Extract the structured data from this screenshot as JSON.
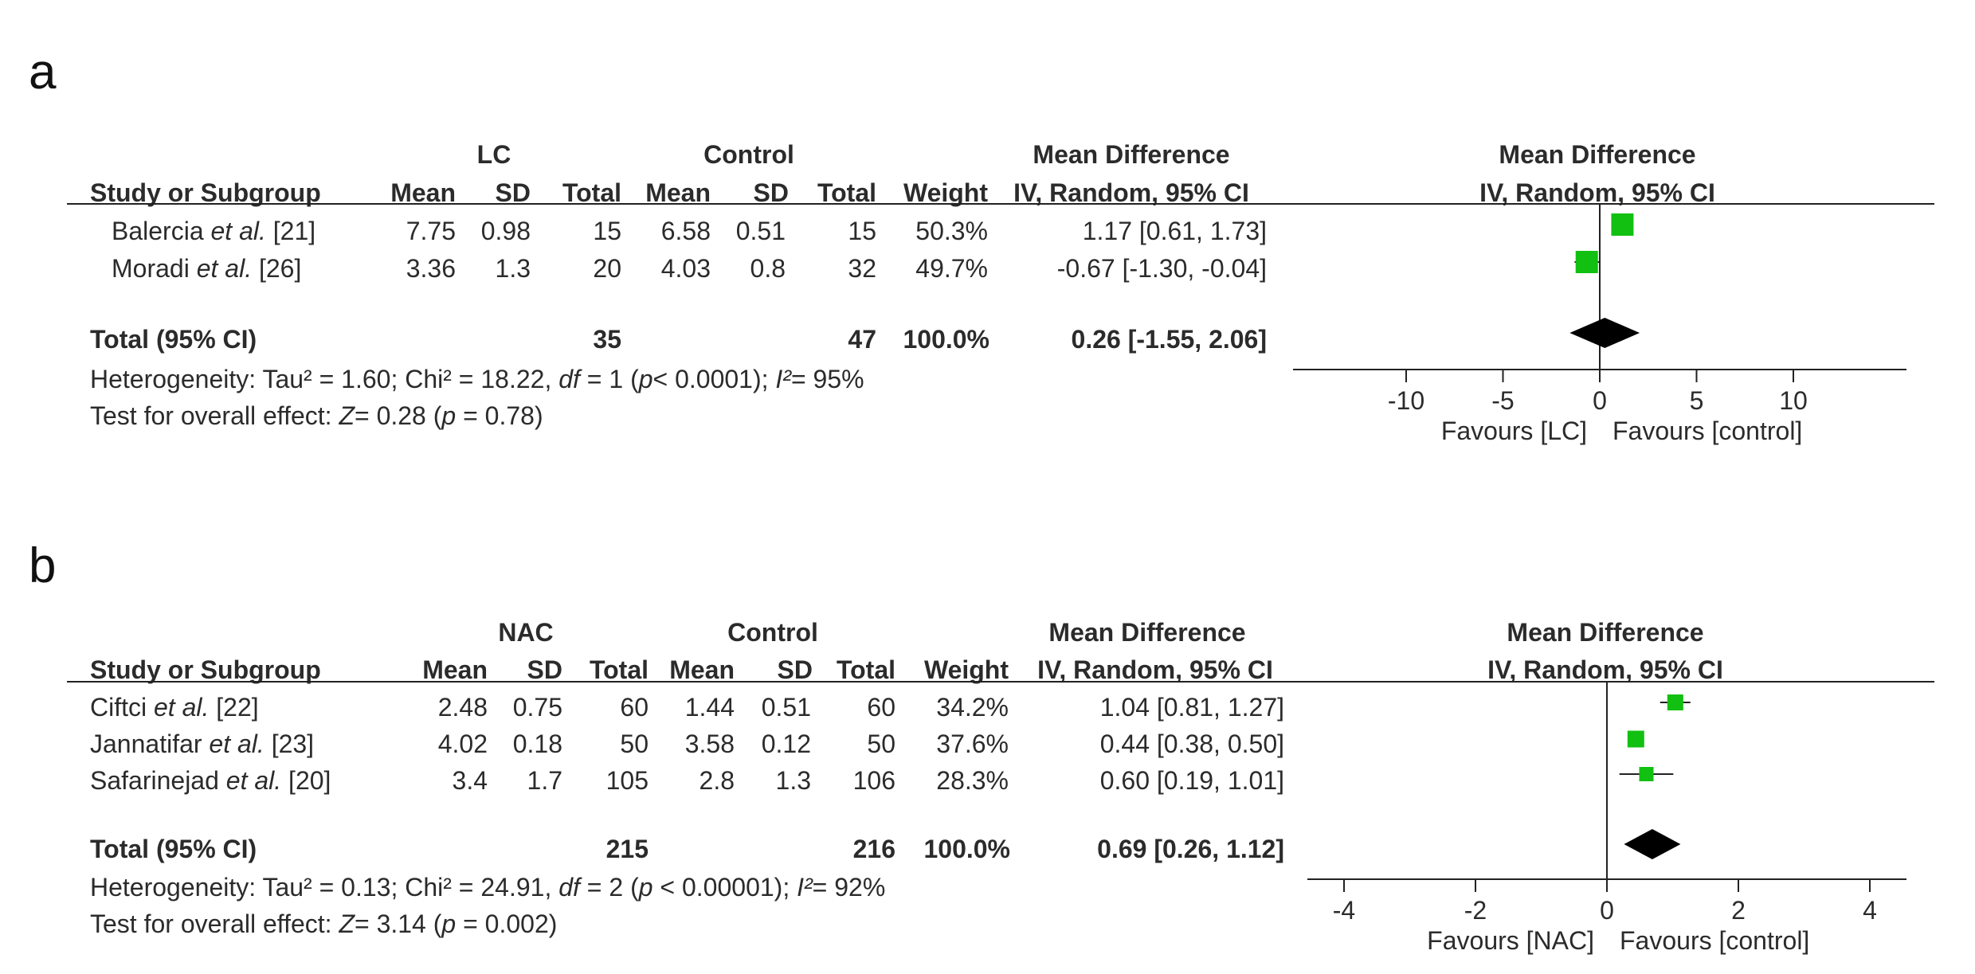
{
  "chart_data": [
    {
      "type": "forest",
      "panel_label": "a",
      "group_labels": {
        "experimental": "LC",
        "control": "Control"
      },
      "headers": {
        "study": "Study or Subgroup",
        "mean": "Mean",
        "sd": "SD",
        "total": "Total",
        "weight": "Weight",
        "md_title": "Mean Difference",
        "md_method": "IV, Random, 95% CI"
      },
      "studies": [
        {
          "author": "Balercia",
          "etal": "et al.",
          "ref": "[21]",
          "exp_mean": "7.75",
          "exp_sd": "0.98",
          "exp_total": "15",
          "ctl_mean": "6.58",
          "ctl_sd": "0.51",
          "ctl_total": "15",
          "weight": "50.3%",
          "ci_text": "1.17 [0.61, 1.73]",
          "md": 1.17,
          "lo": 0.61,
          "hi": 1.73
        },
        {
          "author": "Moradi",
          "etal": "et al.",
          "ref": "[26]",
          "exp_mean": "3.36",
          "exp_sd": "1.3",
          "exp_total": "20",
          "ctl_mean": "4.03",
          "ctl_sd": "0.8",
          "ctl_total": "32",
          "weight": "49.7%",
          "ci_text": "-0.67 [-1.30, -0.04]",
          "md": -0.67,
          "lo": -1.3,
          "hi": -0.04
        }
      ],
      "total": {
        "label": "Total (95% CI)",
        "exp_total": "35",
        "ctl_total": "47",
        "weight": "100.0%",
        "ci_text": "0.26 [-1.55, 2.06]",
        "md": 0.26,
        "lo": -1.55,
        "hi": 2.06
      },
      "heterogeneity": {
        "prefix": "Heterogeneity: Tau² = 1.60; Chi² = 18.22, ",
        "df_label": "df",
        "df_rest": " = 1 (",
        "p_label": "p",
        "p_rest": "< 0.0001); ",
        "i2_label": "I²",
        "i2_rest": "= 95%"
      },
      "overall": {
        "prefix": "Test for overall effect:  ",
        "z_label": "Z",
        "z_rest": "= 0.28 (",
        "p_label": "p",
        "p_rest": " = 0.78)"
      },
      "axis": {
        "ticks": [
          -10,
          -5,
          0,
          5,
          10
        ],
        "tick_labels": [
          "-10",
          "-5",
          "0",
          "5",
          "10"
        ],
        "xlim": [
          -10,
          10
        ]
      },
      "favours_left": "Favours [LC]",
      "favours_right": "Favours [control]",
      "colors": {
        "marker": "#11c011",
        "diamond": "#000000"
      }
    },
    {
      "type": "forest",
      "panel_label": "b",
      "group_labels": {
        "experimental": "NAC",
        "control": "Control"
      },
      "headers": {
        "study": "Study or Subgroup",
        "mean": "Mean",
        "sd": "SD",
        "total": "Total",
        "weight": "Weight",
        "md_title": "Mean Difference",
        "md_method": "IV, Random, 95% CI"
      },
      "studies": [
        {
          "author": "Ciftci",
          "etal": "et al.",
          "ref": "[22]",
          "exp_mean": "2.48",
          "exp_sd": "0.75",
          "exp_total": "60",
          "ctl_mean": "1.44",
          "ctl_sd": "0.51",
          "ctl_total": "60",
          "weight": "34.2%",
          "ci_text": "1.04 [0.81, 1.27]",
          "md": 1.04,
          "lo": 0.81,
          "hi": 1.27
        },
        {
          "author": "Jannatifar",
          "etal": "et al.",
          "ref": "[23]",
          "exp_mean": "4.02",
          "exp_sd": "0.18",
          "exp_total": "50",
          "ctl_mean": "3.58",
          "ctl_sd": "0.12",
          "ctl_total": "50",
          "weight": "37.6%",
          "ci_text": "0.44 [0.38, 0.50]",
          "md": 0.44,
          "lo": 0.38,
          "hi": 0.5
        },
        {
          "author": "Safarinejad",
          "etal": "et al.",
          "ref": "[20]",
          "exp_mean": "3.4",
          "exp_sd": "1.7",
          "exp_total": "105",
          "ctl_mean": "2.8",
          "ctl_sd": "1.3",
          "ctl_total": "106",
          "weight": "28.3%",
          "ci_text": "0.60 [0.19, 1.01]",
          "md": 0.6,
          "lo": 0.19,
          "hi": 1.01
        }
      ],
      "total": {
        "label": "Total (95% CI)",
        "exp_total": "215",
        "ctl_total": "216",
        "weight": "100.0%",
        "ci_text": "0.69 [0.26, 1.12]",
        "md": 0.69,
        "lo": 0.26,
        "hi": 1.12
      },
      "heterogeneity": {
        "prefix": "Heterogeneity: Tau² = 0.13; Chi² = 24.91, ",
        "df_label": "df",
        "df_rest": " = 2 (",
        "p_label": "p",
        "p_rest": " < 0.00001); ",
        "i2_label": "I²",
        "i2_rest": "= 92%"
      },
      "overall": {
        "prefix": "Test for overall effect:  ",
        "z_label": "Z",
        "z_rest": "= 3.14 (",
        "p_label": "p",
        "p_rest": " = 0.002)"
      },
      "axis": {
        "ticks": [
          -4,
          -2,
          0,
          2,
          4
        ],
        "tick_labels": [
          "-4",
          "-2",
          "0",
          "2",
          "4"
        ],
        "xlim": [
          -4,
          4
        ]
      },
      "favours_left": "Favours [NAC]",
      "favours_right": "Favours [control]",
      "colors": {
        "marker": "#11c011",
        "diamond": "#000000"
      }
    }
  ]
}
